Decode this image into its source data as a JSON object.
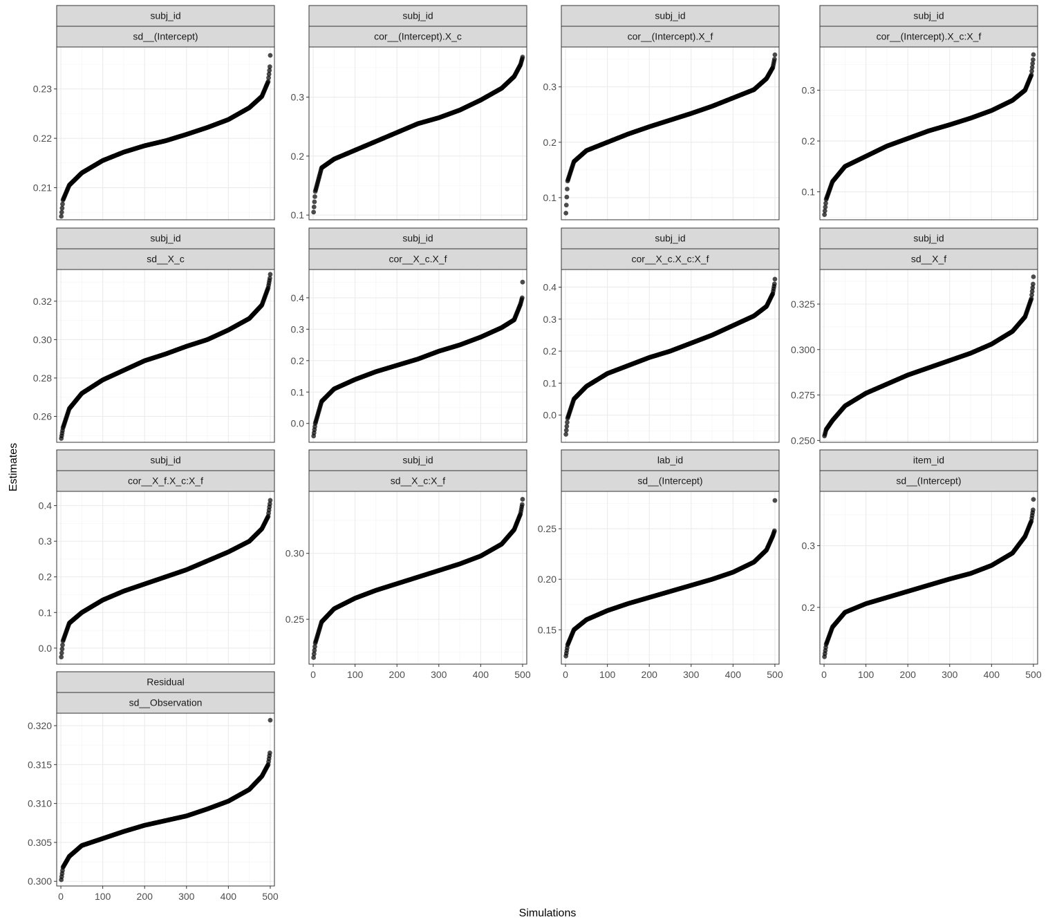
{
  "chart_data": {
    "type": "scatter",
    "xlabel": "Simulations",
    "ylabel": "Estimates",
    "xlim": [
      -10,
      510
    ],
    "xticks": [
      0,
      100,
      200,
      300,
      400,
      500
    ],
    "n_points": 500,
    "panels": [
      {
        "group": "subj_id",
        "term": "sd__(Intercept)",
        "ylim": [
          0.2035,
          0.2385
        ],
        "yticks": [
          0.21,
          0.22,
          0.23
        ],
        "curve": [
          [
            1,
            0.2042
          ],
          [
            5,
            0.2075
          ],
          [
            20,
            0.2105
          ],
          [
            50,
            0.213
          ],
          [
            100,
            0.2155
          ],
          [
            150,
            0.2172
          ],
          [
            200,
            0.2185
          ],
          [
            250,
            0.2195
          ],
          [
            300,
            0.2208
          ],
          [
            350,
            0.2222
          ],
          [
            400,
            0.2238
          ],
          [
            450,
            0.2262
          ],
          [
            480,
            0.2285
          ],
          [
            495,
            0.2315
          ],
          [
            499,
            0.2345
          ],
          [
            500,
            0.2368
          ]
        ]
      },
      {
        "group": "subj_id",
        "term": "cor__(Intercept).X_c",
        "ylim": [
          0.092,
          0.385
        ],
        "yticks": [
          0.1,
          0.2,
          0.3
        ],
        "curve": [
          [
            1,
            0.105
          ],
          [
            5,
            0.14
          ],
          [
            20,
            0.18
          ],
          [
            50,
            0.195
          ],
          [
            100,
            0.21
          ],
          [
            150,
            0.225
          ],
          [
            200,
            0.24
          ],
          [
            250,
            0.255
          ],
          [
            300,
            0.265
          ],
          [
            350,
            0.278
          ],
          [
            400,
            0.295
          ],
          [
            450,
            0.315
          ],
          [
            480,
            0.335
          ],
          [
            495,
            0.355
          ],
          [
            499,
            0.365
          ],
          [
            500,
            0.368
          ]
        ]
      },
      {
        "group": "subj_id",
        "term": "cor__(Intercept).X_f",
        "ylim": [
          0.06,
          0.372
        ],
        "yticks": [
          0.1,
          0.2,
          0.3
        ],
        "curve": [
          [
            1,
            0.072
          ],
          [
            5,
            0.13
          ],
          [
            20,
            0.165
          ],
          [
            50,
            0.185
          ],
          [
            100,
            0.2
          ],
          [
            150,
            0.215
          ],
          [
            200,
            0.228
          ],
          [
            250,
            0.24
          ],
          [
            300,
            0.252
          ],
          [
            350,
            0.265
          ],
          [
            400,
            0.28
          ],
          [
            450,
            0.295
          ],
          [
            480,
            0.315
          ],
          [
            495,
            0.335
          ],
          [
            499,
            0.35
          ],
          [
            500,
            0.358
          ]
        ]
      },
      {
        "group": "subj_id",
        "term": "cor__(Intercept).X_c:X_f",
        "ylim": [
          0.045,
          0.385
        ],
        "yticks": [
          0.1,
          0.2,
          0.3
        ],
        "curve": [
          [
            1,
            0.055
          ],
          [
            5,
            0.085
          ],
          [
            20,
            0.12
          ],
          [
            50,
            0.15
          ],
          [
            100,
            0.17
          ],
          [
            150,
            0.19
          ],
          [
            200,
            0.205
          ],
          [
            250,
            0.22
          ],
          [
            300,
            0.232
          ],
          [
            350,
            0.245
          ],
          [
            400,
            0.26
          ],
          [
            450,
            0.28
          ],
          [
            480,
            0.3
          ],
          [
            495,
            0.33
          ],
          [
            499,
            0.36
          ],
          [
            500,
            0.37
          ]
        ]
      },
      {
        "group": "subj_id",
        "term": "sd__X_c",
        "ylim": [
          0.2465,
          0.3365
        ],
        "yticks": [
          0.26,
          0.28,
          0.3,
          0.32
        ],
        "curve": [
          [
            1,
            0.2485
          ],
          [
            5,
            0.254
          ],
          [
            20,
            0.264
          ],
          [
            50,
            0.272
          ],
          [
            100,
            0.279
          ],
          [
            150,
            0.284
          ],
          [
            200,
            0.289
          ],
          [
            250,
            0.2925
          ],
          [
            300,
            0.2965
          ],
          [
            350,
            0.3
          ],
          [
            400,
            0.305
          ],
          [
            450,
            0.311
          ],
          [
            480,
            0.318
          ],
          [
            495,
            0.327
          ],
          [
            499,
            0.332
          ],
          [
            500,
            0.334
          ]
        ]
      },
      {
        "group": "subj_id",
        "term": "cor__X_c.X_f",
        "ylim": [
          -0.06,
          0.49
        ],
        "yticks": [
          0.0,
          0.1,
          0.2,
          0.3,
          0.4
        ],
        "curve": [
          [
            1,
            -0.04
          ],
          [
            5,
            0.0
          ],
          [
            20,
            0.07
          ],
          [
            50,
            0.11
          ],
          [
            100,
            0.14
          ],
          [
            150,
            0.165
          ],
          [
            200,
            0.185
          ],
          [
            250,
            0.205
          ],
          [
            300,
            0.23
          ],
          [
            350,
            0.25
          ],
          [
            400,
            0.275
          ],
          [
            450,
            0.305
          ],
          [
            480,
            0.33
          ],
          [
            495,
            0.38
          ],
          [
            499,
            0.4
          ],
          [
            500,
            0.45
          ]
        ]
      },
      {
        "group": "subj_id",
        "term": "cor__X_c.X_c:X_f",
        "ylim": [
          -0.085,
          0.455
        ],
        "yticks": [
          0.0,
          0.1,
          0.2,
          0.3,
          0.4
        ],
        "curve": [
          [
            1,
            -0.06
          ],
          [
            5,
            -0.01
          ],
          [
            20,
            0.05
          ],
          [
            50,
            0.09
          ],
          [
            100,
            0.13
          ],
          [
            150,
            0.155
          ],
          [
            200,
            0.18
          ],
          [
            250,
            0.2
          ],
          [
            300,
            0.225
          ],
          [
            350,
            0.25
          ],
          [
            400,
            0.28
          ],
          [
            450,
            0.31
          ],
          [
            480,
            0.34
          ],
          [
            495,
            0.38
          ],
          [
            499,
            0.41
          ],
          [
            500,
            0.425
          ]
        ]
      },
      {
        "group": "subj_id",
        "term": "sd__X_f",
        "ylim": [
          0.249,
          0.344
        ],
        "yticks": [
          0.25,
          0.275,
          0.3,
          0.325
        ],
        "curve": [
          [
            1,
            0.2525
          ],
          [
            5,
            0.256
          ],
          [
            20,
            0.261
          ],
          [
            50,
            0.269
          ],
          [
            100,
            0.276
          ],
          [
            150,
            0.281
          ],
          [
            200,
            0.286
          ],
          [
            250,
            0.29
          ],
          [
            300,
            0.294
          ],
          [
            350,
            0.298
          ],
          [
            400,
            0.303
          ],
          [
            450,
            0.31
          ],
          [
            480,
            0.318
          ],
          [
            495,
            0.328
          ],
          [
            499,
            0.336
          ],
          [
            500,
            0.34
          ]
        ]
      },
      {
        "group": "subj_id",
        "term": "cor__X_f.X_c:X_f",
        "ylim": [
          -0.045,
          0.44
        ],
        "yticks": [
          0.0,
          0.1,
          0.2,
          0.3,
          0.4
        ],
        "curve": [
          [
            1,
            -0.025
          ],
          [
            5,
            0.02
          ],
          [
            20,
            0.07
          ],
          [
            50,
            0.1
          ],
          [
            100,
            0.135
          ],
          [
            150,
            0.16
          ],
          [
            200,
            0.18
          ],
          [
            250,
            0.2
          ],
          [
            300,
            0.22
          ],
          [
            350,
            0.245
          ],
          [
            400,
            0.27
          ],
          [
            450,
            0.3
          ],
          [
            480,
            0.335
          ],
          [
            495,
            0.37
          ],
          [
            499,
            0.405
          ],
          [
            500,
            0.415
          ]
        ]
      },
      {
        "group": "subj_id",
        "term": "sd__X_c:X_f",
        "ylim": [
          0.216,
          0.347
        ],
        "yticks": [
          0.25,
          0.3
        ],
        "curve": [
          [
            1,
            0.221
          ],
          [
            5,
            0.232
          ],
          [
            20,
            0.248
          ],
          [
            50,
            0.258
          ],
          [
            100,
            0.266
          ],
          [
            150,
            0.272
          ],
          [
            200,
            0.277
          ],
          [
            250,
            0.282
          ],
          [
            300,
            0.287
          ],
          [
            350,
            0.292
          ],
          [
            400,
            0.298
          ],
          [
            450,
            0.307
          ],
          [
            480,
            0.318
          ],
          [
            495,
            0.33
          ],
          [
            499,
            0.337
          ],
          [
            500,
            0.341
          ]
        ]
      },
      {
        "group": "lab_id",
        "term": "sd__(Intercept)",
        "ylim": [
          0.116,
          0.287
        ],
        "yticks": [
          0.15,
          0.2,
          0.25
        ],
        "curve": [
          [
            1,
            0.124
          ],
          [
            5,
            0.135
          ],
          [
            20,
            0.15
          ],
          [
            50,
            0.16
          ],
          [
            100,
            0.169
          ],
          [
            150,
            0.176
          ],
          [
            200,
            0.182
          ],
          [
            250,
            0.188
          ],
          [
            300,
            0.194
          ],
          [
            350,
            0.2
          ],
          [
            400,
            0.207
          ],
          [
            450,
            0.217
          ],
          [
            480,
            0.229
          ],
          [
            495,
            0.243
          ],
          [
            499,
            0.248
          ],
          [
            500,
            0.278
          ]
        ]
      },
      {
        "group": "item_id",
        "term": "sd__(Intercept)",
        "ylim": [
          0.108,
          0.388
        ],
        "yticks": [
          0.2,
          0.3
        ],
        "curve": [
          [
            1,
            0.12
          ],
          [
            5,
            0.14
          ],
          [
            20,
            0.168
          ],
          [
            50,
            0.192
          ],
          [
            100,
            0.206
          ],
          [
            150,
            0.216
          ],
          [
            200,
            0.226
          ],
          [
            250,
            0.236
          ],
          [
            300,
            0.246
          ],
          [
            350,
            0.255
          ],
          [
            400,
            0.268
          ],
          [
            450,
            0.288
          ],
          [
            480,
            0.315
          ],
          [
            495,
            0.34
          ],
          [
            499,
            0.358
          ],
          [
            500,
            0.375
          ]
        ]
      },
      {
        "group": "Residual",
        "term": "sd__Observation",
        "ylim": [
          0.2994,
          0.3216
        ],
        "yticks": [
          0.3,
          0.305,
          0.31,
          0.315,
          0.32
        ],
        "curve": [
          [
            1,
            0.3002
          ],
          [
            5,
            0.3018
          ],
          [
            20,
            0.3032
          ],
          [
            50,
            0.3046
          ],
          [
            100,
            0.3055
          ],
          [
            150,
            0.3064
          ],
          [
            200,
            0.3072
          ],
          [
            250,
            0.3078
          ],
          [
            300,
            0.3084
          ],
          [
            350,
            0.3093
          ],
          [
            400,
            0.3103
          ],
          [
            450,
            0.3118
          ],
          [
            480,
            0.3135
          ],
          [
            495,
            0.315
          ],
          [
            499,
            0.3165
          ],
          [
            500,
            0.3207
          ]
        ]
      }
    ]
  }
}
